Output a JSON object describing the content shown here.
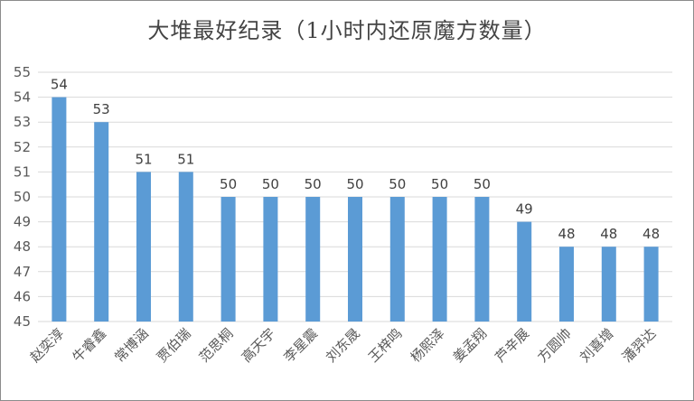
{
  "chart_data": {
    "type": "bar",
    "title": "大堆最好纪录（1小时内还原魔方数量）",
    "xlabel": "",
    "ylabel": "",
    "categories": [
      "赵奕淳",
      "牛睿鑫",
      "常博涵",
      "贾伯瑞",
      "范思桐",
      "高天宇",
      "李星震",
      "刘东晟",
      "王梓鸣",
      "杨熙泽",
      "姜孟翔",
      "芦辛展",
      "方圆帅",
      "刘喜增",
      "潘羿达"
    ],
    "values": [
      54,
      53,
      51,
      51,
      50,
      50,
      50,
      50,
      50,
      50,
      50,
      49,
      48,
      48,
      48
    ],
    "ylim": [
      45,
      55
    ],
    "yticks": [
      45,
      46,
      47,
      48,
      49,
      50,
      51,
      52,
      53,
      54,
      55
    ],
    "grid": true,
    "legend": "none",
    "bar_color": "#5b9bd5",
    "grid_color": "#d9d9d9"
  }
}
